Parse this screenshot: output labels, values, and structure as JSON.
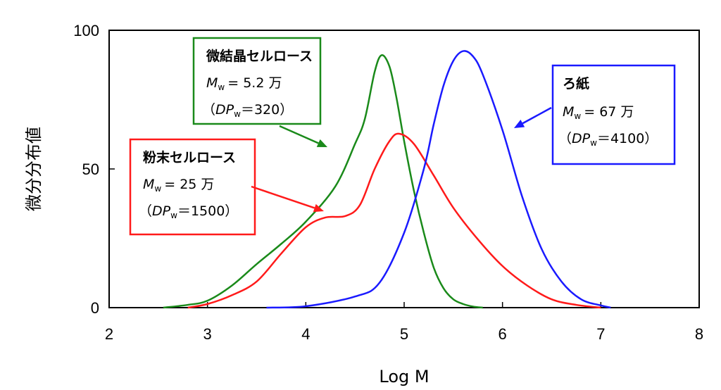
{
  "chart_data": {
    "type": "line",
    "xlabel": "Log M",
    "ylabel": "微分分布値",
    "xlim": [
      2,
      8
    ],
    "ylim": [
      0,
      100
    ],
    "xticks": [
      "2",
      "3",
      "4",
      "5",
      "6",
      "7",
      "8"
    ],
    "yticks": [
      "0",
      "50",
      "100"
    ],
    "grid": false,
    "series": [
      {
        "name": "微結晶セルロース",
        "color": "#1a8a1a",
        "x": [
          2.55,
          2.8,
          3.0,
          3.25,
          3.5,
          3.75,
          4.0,
          4.3,
          4.5,
          4.6,
          4.7,
          4.77,
          4.85,
          4.92,
          5.0,
          5.1,
          5.2,
          5.3,
          5.4,
          5.5,
          5.6,
          5.7,
          5.8
        ],
        "y": [
          0,
          1,
          2.5,
          8,
          15.7,
          23,
          31,
          43.7,
          59,
          68,
          85,
          91,
          87,
          76,
          60,
          42,
          27,
          14.5,
          7,
          3,
          1.3,
          0.4,
          0
        ]
      },
      {
        "name": "粉末セルロース",
        "color": "#ff1a1a",
        "x": [
          2.8,
          3.0,
          3.25,
          3.5,
          3.75,
          4.0,
          4.2,
          4.4,
          4.55,
          4.7,
          4.85,
          4.95,
          5.1,
          5.3,
          5.5,
          5.75,
          6.0,
          6.25,
          6.5,
          6.75,
          7.0
        ],
        "y": [
          0,
          1.3,
          4.5,
          9.4,
          19.5,
          29,
          32.5,
          33,
          37,
          50,
          60,
          62.7,
          59,
          47.7,
          36,
          24.6,
          15,
          8,
          3,
          1,
          0
        ]
      },
      {
        "name": "ろ紙",
        "color": "#1a1aff",
        "x": [
          3.6,
          4.0,
          4.5,
          4.75,
          5.0,
          5.2,
          5.3,
          5.4,
          5.5,
          5.6,
          5.7,
          5.8,
          6.0,
          6.2,
          6.4,
          6.6,
          6.8,
          7.0,
          7.1
        ],
        "y": [
          0,
          0.5,
          4,
          9,
          27,
          50,
          66,
          80,
          89,
          92.5,
          90.6,
          84,
          64,
          40,
          21,
          9.4,
          3,
          0.8,
          0
        ]
      }
    ],
    "annotations": [
      {
        "title": "微結晶セルロース",
        "m": "M",
        "sub": "w",
        "mw": "= 5.2 万",
        "dp_open": "（",
        "dp": "DP",
        "dp_value": "＝320）",
        "color": "#1a8a1a"
      },
      {
        "title": "粉末セルロース",
        "m": "M",
        "sub": "w",
        "mw": "= 25 万",
        "dp_open": "（",
        "dp": "DP",
        "dp_value": "＝1500）",
        "color": "#ff1a1a"
      },
      {
        "title": "ろ紙",
        "m": "M",
        "sub": "w",
        "mw": "= 67 万",
        "dp_open": "（",
        "dp": "DP",
        "dp_value": "＝4100）",
        "color": "#1a1aff"
      }
    ]
  }
}
